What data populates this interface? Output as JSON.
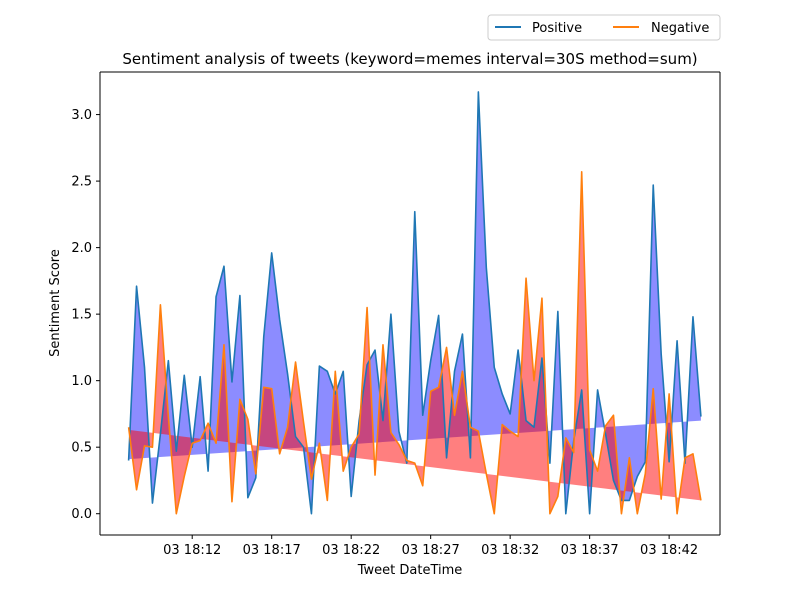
{
  "chart_data": {
    "type": "line",
    "title": "Sentiment analysis of tweets (keyword=memes interval=30S method=sum)",
    "xlabel": "Tweet DateTime",
    "ylabel": "Sentiment Score",
    "x_unit": "minutes after 18:08",
    "x_tick_values": [
      4,
      9,
      14,
      19,
      24,
      29,
      34
    ],
    "x_tick_labels": [
      "03 18:12",
      "03 18:17",
      "03 18:22",
      "03 18:27",
      "03 18:32",
      "03 18:37",
      "03 18:42"
    ],
    "xlim": [
      -1.8,
      37.2
    ],
    "ylim": [
      -0.16,
      3.32
    ],
    "y_ticks": [
      0.0,
      0.5,
      1.0,
      1.5,
      2.0,
      2.5,
      3.0
    ],
    "y_tick_labels": [
      "0.0",
      "0.5",
      "1.0",
      "1.5",
      "2.0",
      "2.5",
      "3.0"
    ],
    "x_values": [
      0.0,
      0.5,
      1.0,
      1.5,
      2.0,
      2.5,
      3.0,
      3.5,
      4.0,
      4.5,
      5.0,
      5.5,
      6.0,
      6.5,
      7.0,
      7.5,
      8.0,
      8.5,
      9.0,
      9.5,
      10.0,
      10.5,
      11.0,
      11.5,
      12.0,
      12.5,
      13.0,
      13.5,
      14.0,
      14.5,
      15.0,
      15.5,
      16.0,
      16.5,
      17.0,
      17.5,
      18.0,
      18.5,
      19.0,
      19.5,
      20.0,
      20.5,
      21.0,
      21.5,
      22.0,
      22.5,
      23.0,
      23.5,
      24.0,
      24.5,
      25.0,
      25.5,
      26.0,
      26.5,
      27.0,
      27.5,
      28.0,
      28.5,
      29.0,
      29.5,
      30.0,
      30.5,
      31.0,
      31.5,
      32.0,
      32.5,
      33.0,
      33.5,
      34.0,
      34.5,
      35.0,
      35.5,
      36.0
    ],
    "series": [
      {
        "name": "Positive",
        "color": "#1f77b4",
        "values": [
          0.4,
          1.71,
          1.1,
          0.08,
          0.6,
          1.15,
          0.47,
          1.04,
          0.5,
          1.03,
          0.32,
          1.63,
          1.86,
          0.99,
          1.64,
          0.12,
          0.27,
          1.33,
          1.96,
          1.46,
          1.05,
          0.58,
          0.5,
          0.0,
          1.11,
          1.07,
          0.9,
          1.07,
          0.13,
          0.7,
          1.12,
          1.23,
          0.7,
          1.5,
          0.62,
          0.38,
          2.27,
          0.74,
          1.15,
          1.49,
          0.42,
          1.07,
          1.35,
          0.42,
          3.17,
          1.85,
          1.1,
          0.9,
          0.75,
          1.23,
          0.7,
          0.65,
          1.17,
          0.38,
          1.52,
          0.0,
          0.55,
          0.93,
          0.0,
          0.93,
          0.6,
          0.25,
          0.1,
          0.1,
          0.28,
          0.39,
          2.47,
          1.2,
          0.39,
          1.3,
          0.38,
          1.48,
          0.73
        ]
      },
      {
        "name": "Negative",
        "color": "#ff7f0e",
        "values": [
          0.65,
          0.18,
          0.51,
          0.5,
          1.57,
          0.73,
          0.0,
          0.28,
          0.53,
          0.55,
          0.68,
          0.53,
          1.27,
          0.09,
          0.86,
          0.71,
          0.3,
          0.95,
          0.94,
          0.45,
          0.65,
          1.14,
          0.69,
          0.26,
          0.53,
          0.1,
          1.07,
          0.32,
          0.5,
          0.6,
          1.55,
          0.29,
          1.27,
          0.61,
          0.52,
          0.4,
          0.38,
          0.21,
          0.92,
          0.95,
          1.25,
          0.74,
          1.07,
          0.65,
          0.62,
          0.3,
          0.0,
          0.67,
          0.62,
          0.58,
          1.77,
          1.0,
          1.62,
          0.0,
          0.13,
          0.57,
          0.46,
          2.57,
          0.48,
          0.32,
          0.66,
          0.74,
          0.0,
          0.42,
          0.0,
          0.3,
          0.94,
          0.11,
          0.9,
          0.0,
          0.42,
          0.45,
          0.1
        ]
      }
    ],
    "fills": [
      {
        "name": "Positive trend fill",
        "color": "#0000ff",
        "opacity": 0.45,
        "trend_start": 0.41,
        "trend_end": 0.7
      },
      {
        "name": "Negative trend fill",
        "color": "#ff0000",
        "opacity": 0.5,
        "trend_start": 0.63,
        "trend_end": 0.1
      }
    ],
    "legend": {
      "position": "top-right, above axes",
      "columns": 2,
      "entries": [
        "Positive",
        "Negative"
      ]
    },
    "grid": false
  }
}
